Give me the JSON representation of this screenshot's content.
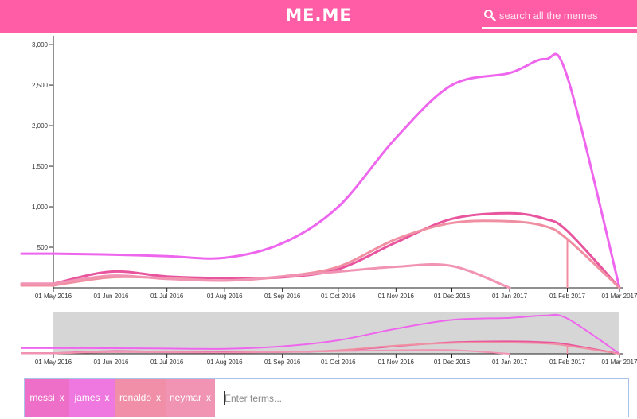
{
  "header": {
    "logo": "ME.ME",
    "search_placeholder": "search all the memes"
  },
  "tags": [
    {
      "label": "messi",
      "remove": "x",
      "color": "#ee6fc7"
    },
    {
      "label": "james",
      "remove": "x",
      "color": "#ee78e0"
    },
    {
      "label": "ronaldo",
      "remove": "x",
      "color": "#f08fa7"
    },
    {
      "label": "neymar",
      "remove": "x",
      "color": "#f194b3"
    }
  ],
  "terms_placeholder": "Enter terms...",
  "chart_data": [
    {
      "type": "line",
      "x": [
        "2016-05-01",
        "2016-06-01",
        "2016-07-01",
        "2016-08-01",
        "2016-09-01",
        "2016-10-01",
        "2016-11-01",
        "2016-12-01",
        "2017-01-01",
        "2017-01-20",
        "2017-02-01",
        "2017-03-01"
      ],
      "x_ticks": [
        "01 May 2016",
        "01 Jun 2016",
        "01 Jul 2016",
        "01 Aug 2016",
        "01 Sep 2016",
        "01 Oct 2016",
        "01 Nov 2016",
        "01 Dec 2016",
        "01 Jan 2017",
        "01 Feb 2017",
        "01 Mar 2017"
      ],
      "y_ticks": [
        "500",
        "1,000",
        "1,500",
        "2,000",
        "2,500",
        "3,000"
      ],
      "ylim": [
        0,
        3050
      ],
      "y_tick_values": [
        500,
        1000,
        1500,
        2000,
        2500,
        3000
      ],
      "series": [
        {
          "color": "#ee66ee",
          "values": [
            420,
            410,
            390,
            370,
            550,
            1000,
            1850,
            2500,
            2650,
            2820,
            2600,
            0
          ]
        },
        {
          "color": "#e8559e",
          "values": [
            50,
            200,
            140,
            120,
            130,
            230,
            560,
            850,
            920,
            850,
            700,
            0
          ]
        },
        {
          "color": "#f08fa2",
          "values": [
            30,
            130,
            120,
            90,
            140,
            260,
            600,
            800,
            820,
            760,
            600,
            0
          ]
        },
        {
          "color": "#f194b3",
          "values": [
            50,
            150,
            110,
            90,
            140,
            200,
            260,
            270,
            0,
            null,
            null,
            null
          ]
        }
      ]
    }
  ]
}
